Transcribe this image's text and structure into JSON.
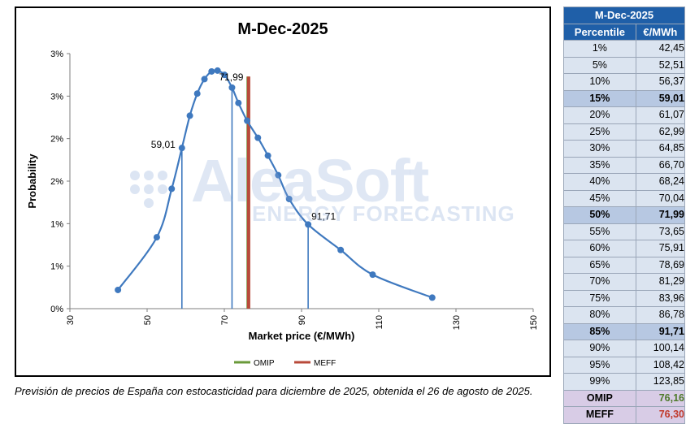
{
  "chart_data": {
    "type": "line",
    "title": "M-Dec-2025",
    "xlabel": "Market price (€/MWh)",
    "ylabel": "Probability",
    "xlim": [
      30,
      150
    ],
    "ylim": [
      0,
      3
    ],
    "x_ticks": [
      30,
      50,
      70,
      90,
      110,
      130,
      150
    ],
    "x_tick_labels": [
      "30",
      "50",
      "70",
      "90",
      "110",
      "130",
      "150"
    ],
    "y_ticks": [
      0,
      0.5,
      1,
      1.5,
      2,
      2.5,
      3
    ],
    "y_tick_labels": [
      "0%",
      "1%",
      "1%",
      "2%",
      "2%",
      "3%",
      "3%"
    ],
    "series": [
      {
        "values_note": "",
        "x": [
          42.45,
          52.51,
          56.37,
          59.01,
          61.07,
          62.99,
          64.85,
          66.7,
          68.24,
          70.04,
          71.99,
          73.65,
          75.91,
          78.69,
          81.29,
          83.96,
          86.78,
          91.71,
          100.14,
          108.42,
          123.85
        ],
        "y": [
          0.22,
          0.84,
          1.41,
          1.89,
          2.27,
          2.53,
          2.7,
          2.79,
          2.8,
          2.75,
          2.6,
          2.42,
          2.21,
          2.01,
          1.8,
          1.57,
          1.29,
          0.99,
          0.69,
          0.4,
          0.13
        ],
        "color": "#3f79bf"
      }
    ],
    "percentile_lines": [
      {
        "x": 59.01,
        "label": "59,01"
      },
      {
        "x": 71.99,
        "label": "71,99"
      },
      {
        "x": 91.71,
        "label": "91,71"
      }
    ],
    "reference_lines": [
      {
        "name": "OMIP",
        "x": 76.16,
        "color": "#6a9a3a"
      },
      {
        "name": "MEFF",
        "x": 76.3,
        "color": "#b84a3a"
      }
    ],
    "legend": {
      "placement": "bottom",
      "entries": [
        "OMIP",
        "MEFF"
      ]
    },
    "grid": false
  },
  "table": {
    "title": "M-Dec-2025",
    "col_percentile": "Percentile",
    "col_value": "€/MWh",
    "rows": [
      {
        "p": "1%",
        "v": "42,45",
        "hl": false
      },
      {
        "p": "5%",
        "v": "52,51",
        "hl": false
      },
      {
        "p": "10%",
        "v": "56,37",
        "hl": false
      },
      {
        "p": "15%",
        "v": "59,01",
        "hl": true
      },
      {
        "p": "20%",
        "v": "61,07",
        "hl": false
      },
      {
        "p": "25%",
        "v": "62,99",
        "hl": false
      },
      {
        "p": "30%",
        "v": "64,85",
        "hl": false
      },
      {
        "p": "35%",
        "v": "66,70",
        "hl": false
      },
      {
        "p": "40%",
        "v": "68,24",
        "hl": false
      },
      {
        "p": "45%",
        "v": "70,04",
        "hl": false
      },
      {
        "p": "50%",
        "v": "71,99",
        "hl": true
      },
      {
        "p": "55%",
        "v": "73,65",
        "hl": false
      },
      {
        "p": "60%",
        "v": "75,91",
        "hl": false
      },
      {
        "p": "65%",
        "v": "78,69",
        "hl": false
      },
      {
        "p": "70%",
        "v": "81,29",
        "hl": false
      },
      {
        "p": "75%",
        "v": "83,96",
        "hl": false
      },
      {
        "p": "80%",
        "v": "86,78",
        "hl": false
      },
      {
        "p": "85%",
        "v": "91,71",
        "hl": true
      },
      {
        "p": "90%",
        "v": "100,14",
        "hl": false
      },
      {
        "p": "95%",
        "v": "108,42",
        "hl": false
      },
      {
        "p": "99%",
        "v": "123,85",
        "hl": false
      }
    ],
    "markets": [
      {
        "name": "OMIP",
        "v": "76,16",
        "color": "#4e7a2a"
      },
      {
        "name": "MEFF",
        "v": "76,30",
        "color": "#c0392b"
      }
    ]
  },
  "watermark": {
    "name": "AleaSoft",
    "sub": "ENERGY FORECASTING"
  },
  "caption": "Previsión de precios de España con estocasticidad para diciembre de 2025, obtenida el 26 de agosto de 2025."
}
